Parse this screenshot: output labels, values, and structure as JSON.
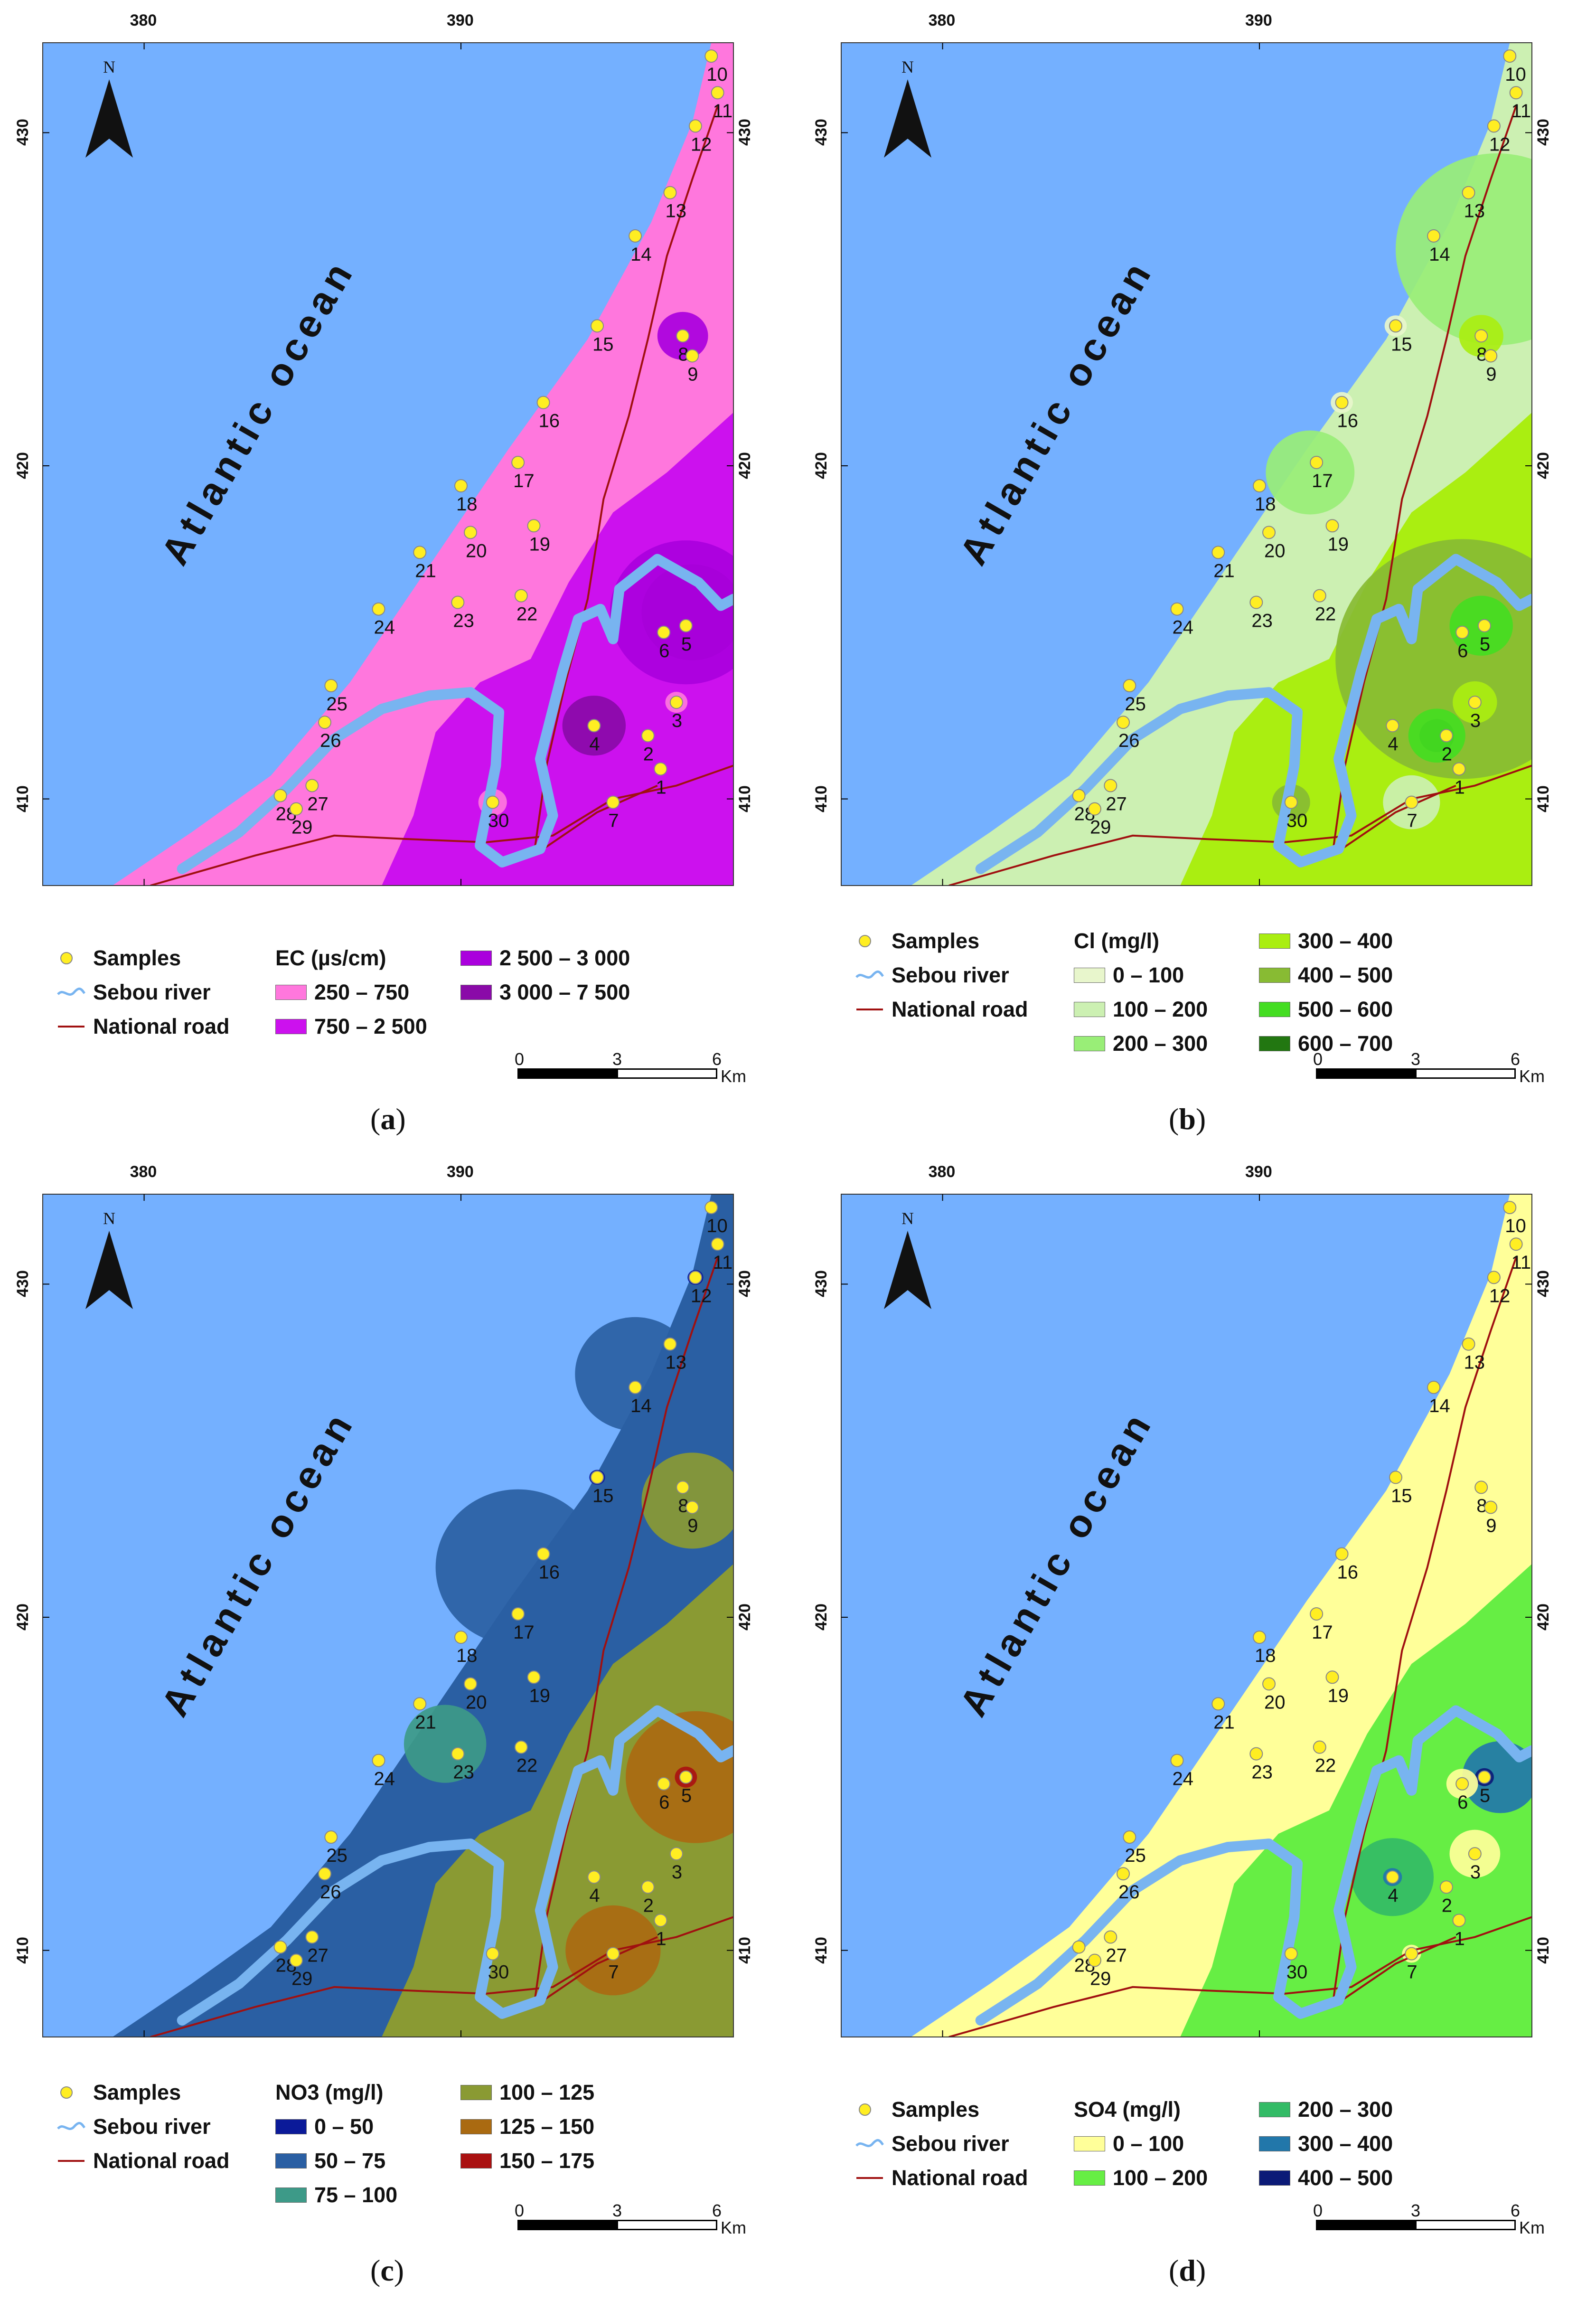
{
  "panels": [
    {
      "id": "a",
      "caption_letter": "a",
      "legend_title": "EC (µs/cm)",
      "classes": [
        {
          "label": "250 – 750",
          "color": "#ff77dd"
        },
        {
          "label": "750 – 2 500",
          "color": "#cc11ee"
        },
        {
          "label": "2 500 – 3 000",
          "color": "#aa00dd"
        },
        {
          "label": "3 000 – 7 500",
          "color": "#8a0aa8"
        }
      ],
      "inland_color": "#cc11ee",
      "coastal_color": "#ff77dd"
    },
    {
      "id": "b",
      "caption_letter": "b",
      "legend_title": "Cl (mg/l)",
      "classes": [
        {
          "label": "0 – 100",
          "color": "#e8f6cc"
        },
        {
          "label": "100 – 200",
          "color": "#ccf0b2"
        },
        {
          "label": "200 – 300",
          "color": "#99ee77"
        },
        {
          "label": "300 – 400",
          "color": "#aaee11"
        },
        {
          "label": "400 – 500",
          "color": "#88bb33"
        },
        {
          "label": "500 – 600",
          "color": "#44dd22"
        },
        {
          "label": "600 – 700",
          "color": "#227711"
        }
      ],
      "inland_color": "#aaee11",
      "coastal_color": "#ccf0b2"
    },
    {
      "id": "c",
      "caption_letter": "c",
      "legend_title": "NO3 (mg/l)",
      "classes": [
        {
          "label": "0 – 50",
          "color": "#0b1a99"
        },
        {
          "label": "50 – 75",
          "color": "#2a5fa3"
        },
        {
          "label": "75 – 100",
          "color": "#3d9a88"
        },
        {
          "label": "100 – 125",
          "color": "#8a9a33"
        },
        {
          "label": "125 – 150",
          "color": "#aa6a11"
        },
        {
          "label": "150 – 175",
          "color": "#aa1111"
        }
      ],
      "inland_color": "#8a9a33",
      "coastal_color": "#2a5fa3"
    },
    {
      "id": "d",
      "caption_letter": "d",
      "legend_title": "SO4 (mg/l)",
      "classes": [
        {
          "label": "0 – 100",
          "color": "#ffff99"
        },
        {
          "label": "100 – 200",
          "color": "#66ee44"
        },
        {
          "label": "200 – 300",
          "color": "#33bb66"
        },
        {
          "label": "300 – 400",
          "color": "#2277aa"
        },
        {
          "label": "400 – 500",
          "color": "#0b1a77"
        }
      ],
      "inland_color": "#66ee44",
      "coastal_color": "#ffff99"
    }
  ],
  "common_legend": {
    "samples": "Samples",
    "river": "Sebou river",
    "road": "National road"
  },
  "axis": {
    "x_ticks": [
      "380",
      "390"
    ],
    "y_ticks": [
      "430",
      "420",
      "410"
    ]
  },
  "north_label": "N",
  "ocean_label": "Atlantic ocean",
  "scalebar": {
    "ticks": [
      "0",
      "3",
      "6"
    ],
    "unit": "Km"
  },
  "samples": [
    {
      "id": "1",
      "x": 396.3,
      "y": 410.9
    },
    {
      "id": "2",
      "x": 395.9,
      "y": 411.9
    },
    {
      "id": "3",
      "x": 396.8,
      "y": 412.9
    },
    {
      "id": "4",
      "x": 394.2,
      "y": 412.2
    },
    {
      "id": "5",
      "x": 397.1,
      "y": 415.2
    },
    {
      "id": "6",
      "x": 396.4,
      "y": 415.0
    },
    {
      "id": "7",
      "x": 394.8,
      "y": 409.9
    },
    {
      "id": "8",
      "x": 397.0,
      "y": 423.9
    },
    {
      "id": "9",
      "x": 397.3,
      "y": 423.3
    },
    {
      "id": "10",
      "x": 397.9,
      "y": 432.3
    },
    {
      "id": "11",
      "x": 398.1,
      "y": 431.2
    },
    {
      "id": "12",
      "x": 397.4,
      "y": 430.2
    },
    {
      "id": "13",
      "x": 396.6,
      "y": 428.2
    },
    {
      "id": "14",
      "x": 395.5,
      "y": 426.9
    },
    {
      "id": "15",
      "x": 394.3,
      "y": 424.2
    },
    {
      "id": "16",
      "x": 392.6,
      "y": 421.9
    },
    {
      "id": "17",
      "x": 391.8,
      "y": 420.1
    },
    {
      "id": "18",
      "x": 390.0,
      "y": 419.4
    },
    {
      "id": "19",
      "x": 392.3,
      "y": 418.2
    },
    {
      "id": "20",
      "x": 390.3,
      "y": 418.0
    },
    {
      "id": "21",
      "x": 388.7,
      "y": 417.4
    },
    {
      "id": "22",
      "x": 391.9,
      "y": 416.1
    },
    {
      "id": "23",
      "x": 389.9,
      "y": 415.9
    },
    {
      "id": "24",
      "x": 387.4,
      "y": 415.7
    },
    {
      "id": "25",
      "x": 385.9,
      "y": 413.4
    },
    {
      "id": "26",
      "x": 385.7,
      "y": 412.3
    },
    {
      "id": "27",
      "x": 385.3,
      "y": 410.4
    },
    {
      "id": "28",
      "x": 384.3,
      "y": 410.1
    },
    {
      "id": "29",
      "x": 384.8,
      "y": 409.7
    },
    {
      "id": "30",
      "x": 391.0,
      "y": 409.9
    }
  ]
}
